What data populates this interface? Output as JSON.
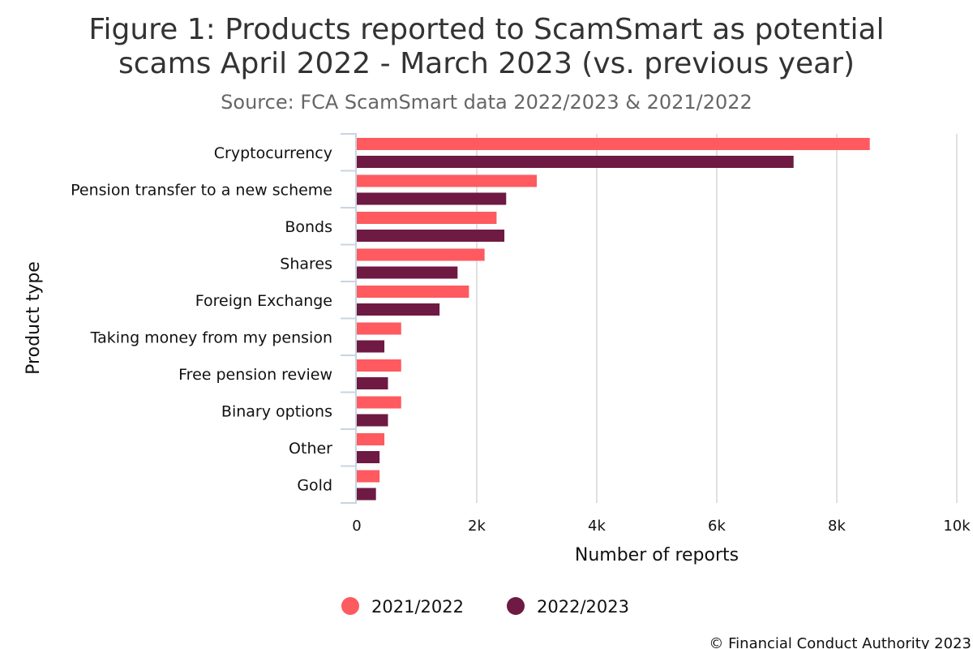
{
  "chart_data": {
    "type": "bar",
    "orientation": "horizontal",
    "title_lines": [
      "Figure 1: Products reported to ScamSmart as potential",
      "scams April 2022 - March 2023 (vs. previous year)"
    ],
    "subtitle": "Source: FCA ScamSmart data 2022/2023 & 2021/2022",
    "xlabel": "Number of reports",
    "ylabel": "Product type",
    "xlim": [
      0,
      10000
    ],
    "xticks": [
      {
        "value": 0,
        "label": "0"
      },
      {
        "value": 2000,
        "label": "2k"
      },
      {
        "value": 4000,
        "label": "4k"
      },
      {
        "value": 6000,
        "label": "6k"
      },
      {
        "value": 8000,
        "label": "8k"
      },
      {
        "value": 10000,
        "label": "10k"
      }
    ],
    "grid": "vertical",
    "legend_position": "bottom",
    "categories": [
      "Cryptocurrency",
      "Pension transfer to a new scheme",
      "Bonds",
      "Shares",
      "Foreign Exchange",
      "Taking money from my pension",
      "Free pension review",
      "Binary options",
      "Other",
      "Gold"
    ],
    "series": [
      {
        "name": "2021/2022",
        "color": "#fe5a5f",
        "values": [
          8550,
          3000,
          2330,
          2130,
          1870,
          740,
          740,
          740,
          460,
          380
        ]
      },
      {
        "name": "2022/2023",
        "color": "#6e1a43",
        "values": [
          7280,
          2490,
          2460,
          1680,
          1380,
          460,
          520,
          520,
          380,
          320
        ]
      }
    ],
    "footer": "© Financial Conduct Authority 2023"
  }
}
